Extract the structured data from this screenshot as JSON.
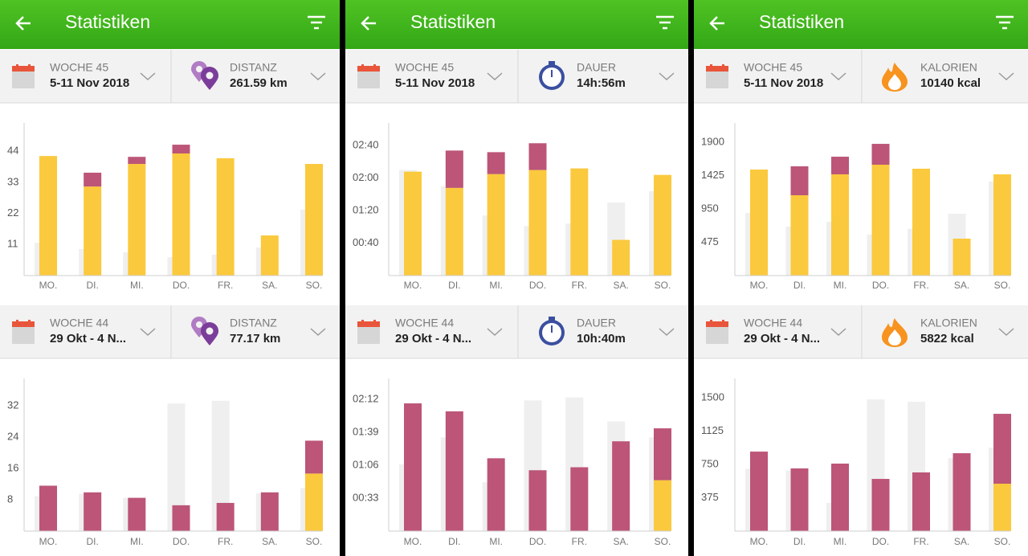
{
  "panels": [
    {
      "title": "Statistiken",
      "sections": [
        {
          "week_label": "WOCHE 45",
          "week_range": "5-11 Nov 2018",
          "metric_label": "DISTANZ",
          "metric_value": "261.59 km",
          "chart": {
            "type": "bar",
            "categories": [
              "MO.",
              "DI.",
              "MI.",
              "DO.",
              "FR.",
              "SA.",
              "SO."
            ],
            "ylim": [
              0,
              54
            ],
            "yticks": [
              11,
              22,
              33,
              44
            ],
            "series": [
              {
                "layer": "back",
                "color": "#efefef",
                "values": [
                  11.6,
                  9.4,
                  8.2,
                  6.5,
                  7.4,
                  9.9,
                  23.3
                ]
              },
              {
                "layer": "front",
                "color": "#fbc93d",
                "values": [
                  42.3,
                  31.5,
                  39.5,
                  43.2,
                  41.5,
                  14.2,
                  39.5
                ]
              },
              {
                "layer": "front",
                "color": "#bc5577",
                "values": [
                  0,
                  4.9,
                  2.5,
                  3.1,
                  0,
                  0,
                  0
                ]
              }
            ]
          }
        },
        {
          "week_label": "WOCHE 44",
          "week_range": "29 Okt - 4 N...",
          "metric_label": "DISTANZ",
          "metric_value": "77.17 km",
          "chart": {
            "type": "bar",
            "categories": [
              "MO.",
              "DI.",
              "MI.",
              "DO.",
              "FR.",
              "SA.",
              "SO."
            ],
            "ylim": [
              0,
              39
            ],
            "yticks": [
              8,
              16,
              24,
              32
            ],
            "series": [
              {
                "layer": "back",
                "color": "#efefef",
                "values": [
                  8.9,
                  9.5,
                  8.5,
                  32.6,
                  33.3,
                  9.7,
                  11
                ]
              },
              {
                "layer": "front",
                "color": "#fbc93d",
                "values": [
                  0,
                  0,
                  0,
                  0,
                  0,
                  0,
                  14.7
                ]
              },
              {
                "layer": "front",
                "color": "#bc5577",
                "values": [
                  11.6,
                  9.9,
                  8.5,
                  6.6,
                  7.2,
                  9.9,
                  8.4
                ]
              }
            ]
          }
        }
      ]
    },
    {
      "title": "Statistiken",
      "sections": [
        {
          "week_label": "WOCHE 45",
          "week_range": "5-11 Nov 2018",
          "metric_label": "DAUER",
          "metric_value": "14h:56m",
          "chart": {
            "type": "bar",
            "categories": [
              "MO.",
              "DI.",
              "MI.",
              "DO.",
              "FR.",
              "SA.",
              "SO."
            ],
            "ylim": [
              0,
              188
            ],
            "yticks": [
              {
                "value": 40,
                "label": "00:40"
              },
              {
                "value": 80,
                "label": "01:20"
              },
              {
                "value": 120,
                "label": "02:00"
              },
              {
                "value": 160,
                "label": "02:40"
              }
            ],
            "series": [
              {
                "layer": "back",
                "color": "#efefef",
                "values": [
                  130,
                  110,
                  74,
                  61,
                  64,
                  90,
                  104
                ]
              },
              {
                "layer": "front",
                "color": "#fbc93d",
                "values": [
                  128,
                  108,
                  125,
                  130,
                  132,
                  44,
                  124
                ]
              },
              {
                "layer": "front",
                "color": "#bc5577",
                "values": [
                  0,
                  46,
                  27,
                  33,
                  0,
                  0,
                  0
                ]
              }
            ]
          }
        },
        {
          "week_label": "WOCHE 44",
          "week_range": "29 Okt - 4 N...",
          "metric_label": "DAUER",
          "metric_value": "10h:40m",
          "chart": {
            "type": "bar",
            "categories": [
              "MO.",
              "DI.",
              "MI.",
              "DO.",
              "FR.",
              "SA.",
              "SO."
            ],
            "ylim": [
              0,
              153
            ],
            "yticks": [
              {
                "value": 33,
                "label": "00:33"
              },
              {
                "value": 66,
                "label": "01:06"
              },
              {
                "value": 99,
                "label": "01:39"
              },
              {
                "value": 132,
                "label": "02:12"
              }
            ],
            "series": [
              {
                "layer": "back",
                "color": "#efefef",
                "values": [
                  67,
                  94,
                  49,
                  131,
                  134,
                  110,
                  94
                ]
              },
              {
                "layer": "front",
                "color": "#fbc93d",
                "values": [
                  0,
                  0,
                  0,
                  0,
                  0,
                  0,
                  51
                ]
              },
              {
                "layer": "front",
                "color": "#bc5577",
                "values": [
                  128,
                  120,
                  73,
                  61,
                  64,
                  90,
                  52
                ]
              }
            ]
          }
        }
      ]
    },
    {
      "title": "Statistiken",
      "sections": [
        {
          "week_label": "WOCHE 45",
          "week_range": "5-11 Nov 2018",
          "metric_label": "KALORIEN",
          "metric_value": "10140 kcal",
          "chart": {
            "type": "bar",
            "categories": [
              "MO.",
              "DI.",
              "MI.",
              "DO.",
              "FR.",
              "SA.",
              "SO."
            ],
            "ylim": [
              0,
              2174
            ],
            "yticks": [
              475,
              950,
              1425,
              1900
            ],
            "series": [
              {
                "layer": "back",
                "color": "#efefef",
                "values": [
                  892,
                  698,
                  767,
                  584,
                  664,
                  881,
                  1339
                ]
              },
              {
                "layer": "front",
                "color": "#fbc93d",
                "values": [
                  1510,
                  1144,
                  1442,
                  1579,
                  1522,
                  526,
                  1442
                ]
              },
              {
                "layer": "front",
                "color": "#bc5577",
                "values": [
                  0,
                  412,
                  251,
                  297,
                  0,
                  0,
                  0
                ]
              }
            ]
          }
        },
        {
          "week_label": "WOCHE 44",
          "week_range": "29 Okt - 4 N...",
          "metric_label": "KALORIEN",
          "metric_value": "5822 kcal",
          "chart": {
            "type": "bar",
            "categories": [
              "MO.",
              "DI.",
              "MI.",
              "DO.",
              "FR.",
              "SA.",
              "SO."
            ],
            "ylim": [
              0,
              1717
            ],
            "yticks": [
              375,
              750,
              1125,
              1500
            ],
            "series": [
              {
                "layer": "back",
                "color": "#efefef",
                "values": [
                  700,
                  680,
                  316,
                  1481,
                  1454,
                  820,
                  939
                ]
              },
              {
                "layer": "front",
                "color": "#fbc93d",
                "values": [
                  0,
                  0,
                  0,
                  0,
                  0,
                  0,
                  533
                ]
              },
              {
                "layer": "front",
                "color": "#bc5577",
                "values": [
                  894,
                  705,
                  759,
                  587,
                  660,
                  876,
                  786
                ]
              }
            ]
          }
        }
      ]
    }
  ]
}
